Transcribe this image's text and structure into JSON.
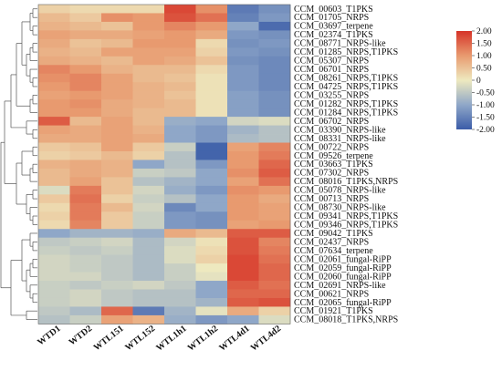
{
  "chart_data": {
    "type": "heatmap",
    "title": "",
    "columns": [
      "WTD1",
      "WTD2",
      "WTL151",
      "WTL152",
      "WTL1h1",
      "WTL1h2",
      "WTL4d1",
      "WTL4d2"
    ],
    "rows": [
      "CCM_00603_T1PKS",
      "CCM_01705_NRPS",
      "CCM_03697_terpene",
      "CCM_02374_T1PKS",
      "CCM_08771_NRPS-like",
      "CCM_01285_NRPS,T1PKS",
      "CCM_05307_NRPS",
      "CCM_06701_NRPS",
      "CCM_08261_NRPS,T1PKS",
      "CCM_04725_NRPS,T1PKS",
      "CCM_03255_NRPS",
      "CCM_01282_NRPS,T1PKS",
      "CCM_01284_NRPS,T1PKS",
      "CCM_06702_NRPS",
      "CCM_03390_NRPS-like",
      "CCM_08331_NRPS-like",
      "CCM_00722_NRPS",
      "CCM_09526_terpene",
      "CCM_03663_T1PKS",
      "CCM_07302_NRPS",
      "CCM_08016_T1PKS,NRPS",
      "CCM_05078_NRPS-like",
      "CCM_00713_NRPS",
      "CCM_08730_NRPS-like",
      "CCM_09341_NRPS,T1PKS",
      "CCM_09346_NRPS,T1PKS",
      "CCM_09042_T1PKS",
      "CCM_02437_NRPS",
      "CCM_07634_terpene",
      "CCM_02061_fungal-RiPP",
      "CCM_02059_fungal-RiPP",
      "CCM_02060_fungal-RiPP",
      "CCM_02691_NRPS-like",
      "CCM_00621_NRPS",
      "CCM_02065_fungal-RiPP",
      "CCM_01921_T1PKS",
      "CCM_08018_T1PKS,NRPS"
    ],
    "values": [
      [
        0.3,
        0.2,
        0.2,
        0.2,
        1.8,
        1.1,
        -1.6,
        -1.3
      ],
      [
        0.6,
        0.4,
        1.1,
        1.0,
        1.7,
        1.4,
        -1.5,
        -1.2
      ],
      [
        0.7,
        0.6,
        0.5,
        1.0,
        1.2,
        1.0,
        -1.0,
        -1.8
      ],
      [
        0.9,
        0.8,
        0.8,
        0.9,
        1.0,
        0.8,
        -1.2,
        -1.3
      ],
      [
        0.8,
        0.5,
        0.6,
        1.0,
        1.0,
        0.2,
        -1.3,
        -1.2
      ],
      [
        0.7,
        0.6,
        0.9,
        0.9,
        0.9,
        0.3,
        -1.2,
        -1.3
      ],
      [
        0.8,
        0.7,
        0.6,
        0.9,
        0.8,
        0.5,
        -1.3,
        -1.4
      ],
      [
        1.2,
        1.0,
        0.7,
        0.6,
        0.6,
        0.2,
        -1.2,
        -1.4
      ],
      [
        1.1,
        1.2,
        0.9,
        0.6,
        0.5,
        0.1,
        -1.2,
        -1.4
      ],
      [
        1.0,
        1.2,
        0.9,
        0.7,
        0.6,
        0.1,
        -1.2,
        -1.4
      ],
      [
        0.9,
        1.0,
        0.9,
        0.7,
        0.5,
        0.1,
        -1.1,
        -1.3
      ],
      [
        1.0,
        1.1,
        0.8,
        0.7,
        0.6,
        0.1,
        -1.1,
        -1.3
      ],
      [
        1.0,
        1.0,
        0.8,
        0.6,
        0.6,
        0.1,
        -1.1,
        -1.3
      ],
      [
        1.6,
        0.6,
        0.9,
        0.6,
        -0.9,
        -1.0,
        -0.3,
        -0.2
      ],
      [
        0.9,
        0.8,
        0.9,
        0.7,
        -1.0,
        -1.2,
        -0.8,
        -0.6
      ],
      [
        0.8,
        0.8,
        0.9,
        0.8,
        -1.0,
        -1.2,
        -0.7,
        -0.6
      ],
      [
        0.4,
        0.5,
        0.9,
        0.4,
        -0.4,
        -1.9,
        0.9,
        1.2
      ],
      [
        0.3,
        0.4,
        0.6,
        0.3,
        -0.6,
        -1.9,
        1.0,
        1.3
      ],
      [
        0.7,
        0.8,
        0.7,
        -1.0,
        -0.6,
        -1.2,
        1.0,
        1.5
      ],
      [
        0.6,
        0.8,
        0.7,
        -0.4,
        -0.5,
        -1.0,
        1.1,
        1.6
      ],
      [
        0.6,
        0.9,
        0.5,
        -0.6,
        -0.8,
        -1.0,
        0.9,
        1.4
      ],
      [
        -0.2,
        1.3,
        0.5,
        -0.3,
        -0.9,
        -1.2,
        1.1,
        1.0
      ],
      [
        0.4,
        1.4,
        0.3,
        -0.4,
        -0.6,
        -1.0,
        1.0,
        0.8
      ],
      [
        0.2,
        1.3,
        0.6,
        -0.3,
        -1.4,
        -1.0,
        1.0,
        0.9
      ],
      [
        0.3,
        1.3,
        0.4,
        -0.4,
        -1.2,
        -1.3,
        1.0,
        0.9
      ],
      [
        0.2,
        1.2,
        0.4,
        -0.4,
        -1.2,
        -1.3,
        0.9,
        1.0
      ],
      [
        -1.0,
        -0.8,
        -0.8,
        -0.9,
        0.8,
        0.6,
        1.6,
        1.6
      ],
      [
        -0.5,
        -0.4,
        -0.3,
        -0.7,
        -0.3,
        0.1,
        1.7,
        1.2
      ],
      [
        -0.4,
        -0.5,
        -0.4,
        -0.7,
        -0.2,
        0.2,
        1.7,
        1.3
      ],
      [
        -0.3,
        -0.4,
        -0.5,
        -0.7,
        -0.2,
        0.3,
        1.8,
        1.4
      ],
      [
        -0.3,
        -0.4,
        -0.5,
        -0.7,
        -0.4,
        0.0,
        1.8,
        1.5
      ],
      [
        -0.3,
        -0.3,
        -0.5,
        -0.7,
        -0.4,
        -0.1,
        1.8,
        1.5
      ],
      [
        -0.4,
        -0.5,
        -0.4,
        -0.3,
        -0.5,
        -1.0,
        1.6,
        1.4
      ],
      [
        -0.4,
        -0.3,
        -0.5,
        -0.6,
        -0.6,
        -1.0,
        1.5,
        1.5
      ],
      [
        -0.4,
        -0.3,
        -0.5,
        -0.6,
        -0.6,
        -0.8,
        1.6,
        1.7
      ],
      [
        -0.5,
        -0.7,
        1.5,
        -1.6,
        -0.8,
        -0.1,
        0.8,
        0.3
      ],
      [
        -0.6,
        -0.4,
        0.9,
        0.7,
        -0.9,
        -1.2,
        -1.0,
        -0.2
      ]
    ],
    "color_scale": {
      "min": -2.0,
      "max": 2.0,
      "stops": [
        {
          "value": -2.0,
          "color": "#3b5ca8"
        },
        {
          "value": -1.0,
          "color": "#8fa7c8"
        },
        {
          "value": 0.0,
          "color": "#eee9bf"
        },
        {
          "value": 1.0,
          "color": "#e89a6f"
        },
        {
          "value": 2.0,
          "color": "#d63328"
        }
      ]
    },
    "legend": {
      "placement": "top-right",
      "ticks": [
        "2.00",
        "1.50",
        "1.00",
        "0.50",
        "0",
        "-0.50",
        "-1.00",
        "-1.50",
        "-2.00"
      ]
    },
    "dendrogram": {
      "side": "left"
    }
  }
}
